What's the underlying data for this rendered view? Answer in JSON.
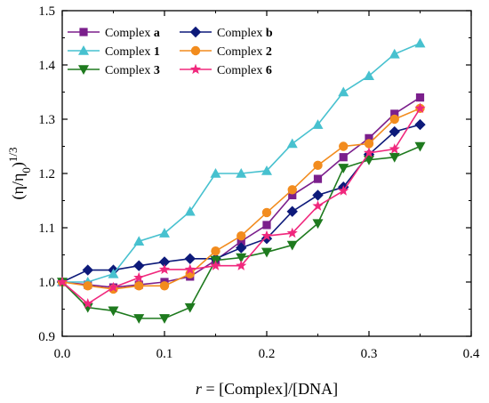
{
  "chart_data": {
    "type": "line",
    "xlabel": {
      "italic": "r",
      "rest": " = [Complex]/[DNA]"
    },
    "ylabel": {
      "main": "(η/η",
      "sub": "0",
      "close": ")",
      "sup": "1/3"
    },
    "xlim": [
      0.0,
      0.4
    ],
    "ylim": [
      0.9,
      1.5
    ],
    "xticks": [
      "0.0",
      "0.1",
      "0.2",
      "0.3",
      "0.4"
    ],
    "yticks": [
      "0.9",
      "1.0",
      "1.1",
      "1.2",
      "1.3",
      "1.4",
      "1.5"
    ],
    "grid": false,
    "legend_position": "top-left",
    "x": [
      0.0,
      0.025,
      0.05,
      0.075,
      0.1,
      0.125,
      0.15,
      0.175,
      0.2,
      0.225,
      0.25,
      0.275,
      0.3,
      0.325,
      0.35
    ],
    "series": [
      {
        "prefix": "Complex ",
        "suffix": "a",
        "color": "#7b1f8c",
        "marker": "square",
        "values": [
          1.0,
          0.995,
          0.99,
          0.995,
          1.0,
          1.01,
          1.04,
          1.075,
          1.105,
          1.16,
          1.19,
          1.23,
          1.265,
          1.31,
          1.34
        ]
      },
      {
        "prefix": "Complex ",
        "suffix": "b",
        "color": "#0d1a7a",
        "marker": "diamond",
        "values": [
          1.0,
          1.022,
          1.022,
          1.03,
          1.037,
          1.043,
          1.043,
          1.063,
          1.08,
          1.13,
          1.16,
          1.175,
          1.235,
          1.277,
          1.29
        ]
      },
      {
        "prefix": "Complex ",
        "suffix": "1",
        "color": "#47c1cf",
        "marker": "triangle-up",
        "values": [
          1.0,
          1.0,
          1.015,
          1.075,
          1.09,
          1.13,
          1.2,
          1.2,
          1.205,
          1.255,
          1.29,
          1.35,
          1.38,
          1.42,
          1.44
        ]
      },
      {
        "prefix": "Complex ",
        "suffix": "2",
        "color": "#f28c1e",
        "marker": "circle",
        "values": [
          1.0,
          0.993,
          0.987,
          0.993,
          0.993,
          1.015,
          1.057,
          1.085,
          1.128,
          1.17,
          1.215,
          1.25,
          1.255,
          1.3,
          1.32
        ]
      },
      {
        "prefix": "Complex ",
        "suffix": "3",
        "color": "#1e7a1e",
        "marker": "triangle-down",
        "values": [
          1.0,
          0.953,
          0.947,
          0.933,
          0.933,
          0.953,
          1.04,
          1.045,
          1.055,
          1.068,
          1.108,
          1.21,
          1.225,
          1.23,
          1.25
        ]
      },
      {
        "prefix": "Complex ",
        "suffix": "6",
        "color": "#f0287d",
        "marker": "star",
        "values": [
          1.0,
          0.96,
          0.99,
          1.008,
          1.023,
          1.023,
          1.03,
          1.03,
          1.085,
          1.09,
          1.14,
          1.168,
          1.238,
          1.245,
          1.32
        ]
      }
    ]
  }
}
